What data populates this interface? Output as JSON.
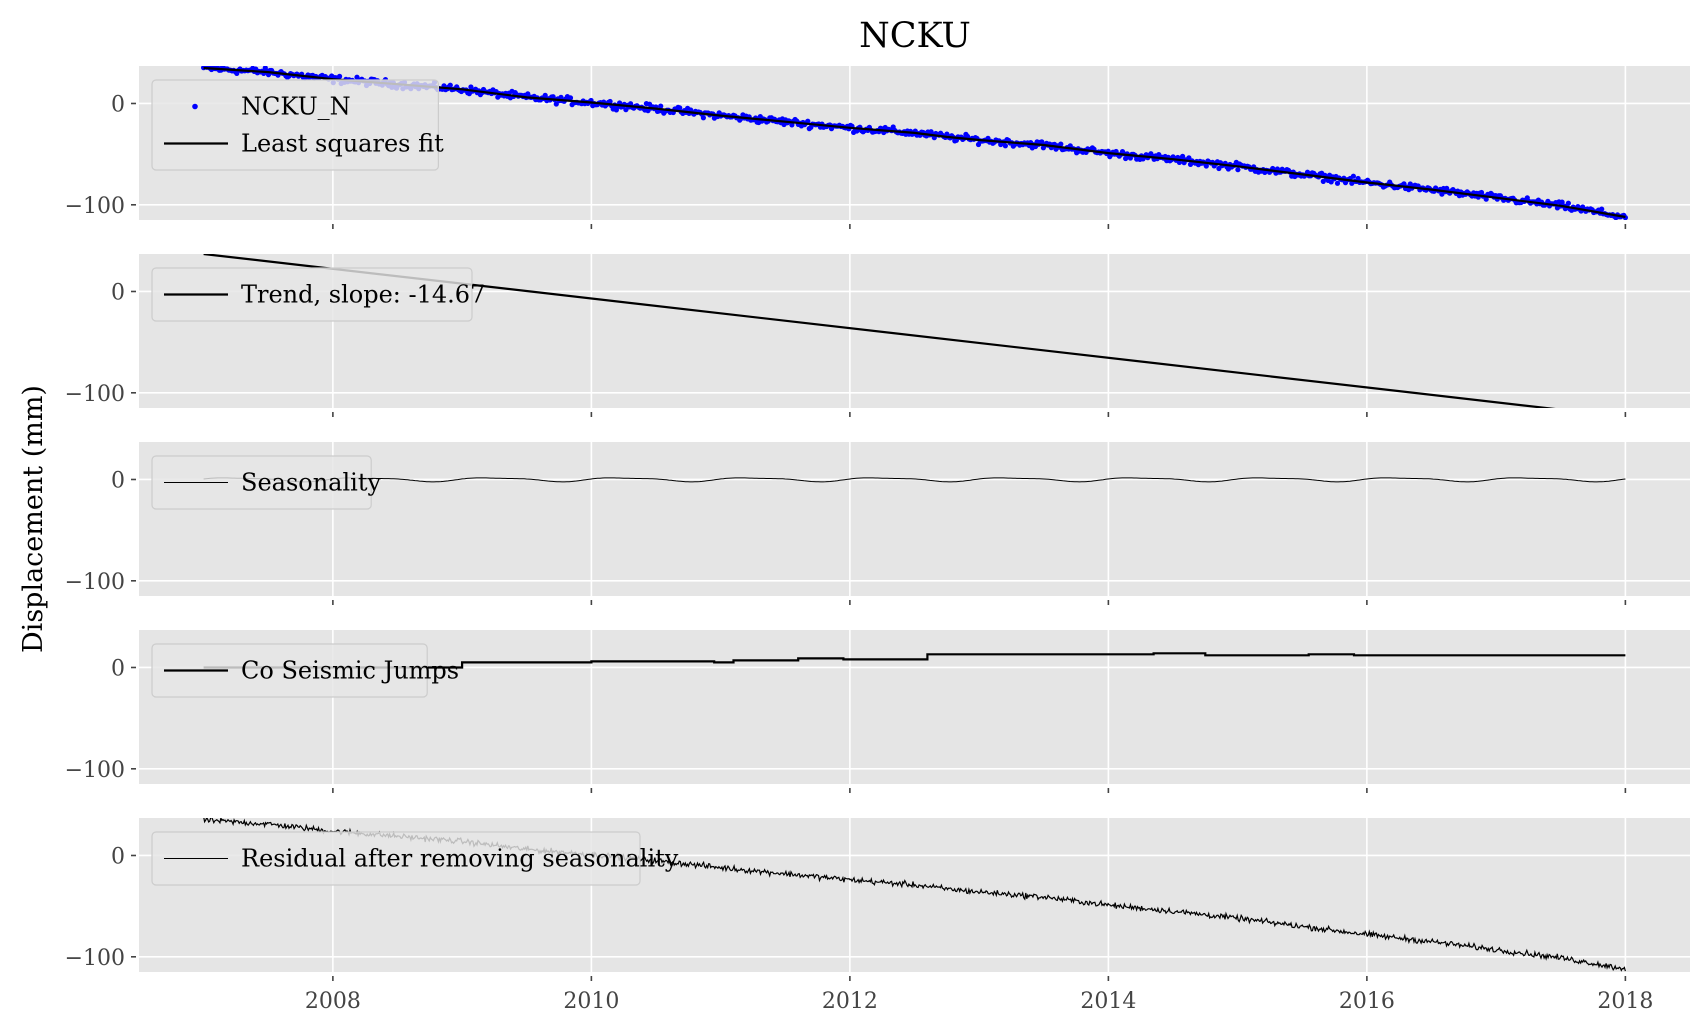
{
  "chart_data": {
    "type": "line",
    "title": "NCKU",
    "ylabel": "Displacement (mm)",
    "xlim": [
      2006.5,
      2018.5
    ],
    "x_ticks": [
      "2008",
      "2010",
      "2012",
      "2014",
      "2016",
      "2018"
    ],
    "y_ticks": [
      "0",
      "−100"
    ],
    "y_tick_values": [
      0,
      -100
    ],
    "grid": true,
    "legend_position": "upper-left",
    "colors": {
      "background": "#e5e5e5",
      "grid": "#ffffff",
      "observed": "#0000ff",
      "fit": "#000000",
      "residual_old": "#b8b8b8"
    },
    "panels": [
      {
        "ylim": [
          -115,
          37
        ],
        "legend": [
          {
            "label": "NCKU_N",
            "marker": "dot",
            "color": "#0000ff"
          },
          {
            "label": "Least squares fit",
            "marker": "line",
            "color": "#000000"
          }
        ],
        "series": [
          {
            "name": "NCKU_N",
            "style": "scatter",
            "points": [
              [
                2007.0,
                35
              ],
              [
                2007.5,
                31
              ],
              [
                2008.0,
                24
              ],
              [
                2008.5,
                19
              ],
              [
                2009.0,
                14
              ],
              [
                2009.5,
                6
              ],
              [
                2010.0,
                1
              ],
              [
                2010.5,
                -5
              ],
              [
                2011.0,
                -12
              ],
              [
                2011.5,
                -18
              ],
              [
                2012.0,
                -24
              ],
              [
                2012.5,
                -29
              ],
              [
                2012.75,
                -33
              ],
              [
                2013.0,
                -36
              ],
              [
                2013.5,
                -41
              ],
              [
                2014.0,
                -49
              ],
              [
                2014.5,
                -55
              ],
              [
                2015.0,
                -62
              ],
              [
                2015.5,
                -70
              ],
              [
                2016.0,
                -78
              ],
              [
                2016.5,
                -85
              ],
              [
                2017.0,
                -93
              ],
              [
                2017.5,
                -101
              ],
              [
                2018.0,
                -112
              ]
            ],
            "noise_mm": 2.5
          },
          {
            "name": "Least squares fit",
            "style": "line",
            "points": [
              [
                2007.0,
                35
              ],
              [
                2007.5,
                31
              ],
              [
                2008.0,
                24
              ],
              [
                2008.5,
                19
              ],
              [
                2009.0,
                14
              ],
              [
                2009.5,
                6
              ],
              [
                2010.0,
                1
              ],
              [
                2010.5,
                -5
              ],
              [
                2011.0,
                -12
              ],
              [
                2011.5,
                -18
              ],
              [
                2012.0,
                -24
              ],
              [
                2012.5,
                -29
              ],
              [
                2012.75,
                -33
              ],
              [
                2013.0,
                -36
              ],
              [
                2013.5,
                -41
              ],
              [
                2014.0,
                -49
              ],
              [
                2014.5,
                -55
              ],
              [
                2015.0,
                -62
              ],
              [
                2015.5,
                -70
              ],
              [
                2016.0,
                -78
              ],
              [
                2016.5,
                -85
              ],
              [
                2017.0,
                -93
              ],
              [
                2017.5,
                -101
              ],
              [
                2018.0,
                -112
              ]
            ]
          }
        ]
      },
      {
        "ylim": [
          -115,
          37
        ],
        "legend": [
          {
            "label": "Trend, slope: -14.67",
            "marker": "line",
            "color": "#000000"
          }
        ],
        "series": [
          {
            "name": "Trend, slope: -14.67",
            "style": "line",
            "points": [
              [
                2007.0,
                37
              ],
              [
                2018.0,
                -124
              ]
            ]
          }
        ]
      },
      {
        "ylim": [
          -115,
          37
        ],
        "legend": [
          {
            "label": "Seasonality",
            "marker": "thinline",
            "color": "#000000"
          }
        ],
        "series": [
          {
            "name": "Seasonality",
            "style": "sine",
            "x_start": 2007.0,
            "x_end": 2018.0,
            "amplitude_mm": 1.8,
            "period_years": 1.0
          }
        ]
      },
      {
        "ylim": [
          -115,
          37
        ],
        "legend": [
          {
            "label": "Co Seismic Jumps",
            "marker": "line",
            "color": "#000000"
          }
        ],
        "series": [
          {
            "name": "Co Seismic Jumps",
            "style": "step",
            "points": [
              [
                2007.0,
                0
              ],
              [
                2009.0,
                0
              ],
              [
                2009.0,
                5
              ],
              [
                2010.0,
                5
              ],
              [
                2010.0,
                6
              ],
              [
                2010.95,
                6
              ],
              [
                2010.95,
                5
              ],
              [
                2011.1,
                5
              ],
              [
                2011.1,
                7
              ],
              [
                2011.6,
                7
              ],
              [
                2011.6,
                9
              ],
              [
                2011.95,
                9
              ],
              [
                2011.95,
                8
              ],
              [
                2012.6,
                8
              ],
              [
                2012.6,
                13
              ],
              [
                2014.35,
                13
              ],
              [
                2014.35,
                14
              ],
              [
                2014.75,
                14
              ],
              [
                2014.75,
                12
              ],
              [
                2015.55,
                12
              ],
              [
                2015.55,
                13
              ],
              [
                2015.9,
                13
              ],
              [
                2015.9,
                12
              ],
              [
                2018.0,
                12
              ]
            ]
          }
        ]
      },
      {
        "ylim": [
          -115,
          37
        ],
        "legend": [
          {
            "label": "Residual after removing seasonality",
            "marker": "thinline",
            "color": "#000000"
          }
        ],
        "series": [
          {
            "name": "Residual after removing seasonality",
            "style": "noisy_line",
            "noise_mm": 2.0,
            "points": [
              [
                2007.0,
                35
              ],
              [
                2007.5,
                31
              ],
              [
                2008.0,
                24
              ],
              [
                2008.5,
                19
              ],
              [
                2009.0,
                14
              ],
              [
                2009.5,
                6
              ],
              [
                2010.0,
                1
              ],
              [
                2010.5,
                -5
              ],
              [
                2011.0,
                -12
              ],
              [
                2011.5,
                -18
              ],
              [
                2012.0,
                -24
              ],
              [
                2012.5,
                -29
              ],
              [
                2012.75,
                -33
              ],
              [
                2013.0,
                -36
              ],
              [
                2013.5,
                -41
              ],
              [
                2014.0,
                -49
              ],
              [
                2014.5,
                -55
              ],
              [
                2015.0,
                -62
              ],
              [
                2015.5,
                -70
              ],
              [
                2016.0,
                -78
              ],
              [
                2016.5,
                -85
              ],
              [
                2017.0,
                -93
              ],
              [
                2017.5,
                -101
              ],
              [
                2018.0,
                -112
              ]
            ]
          }
        ]
      }
    ]
  }
}
